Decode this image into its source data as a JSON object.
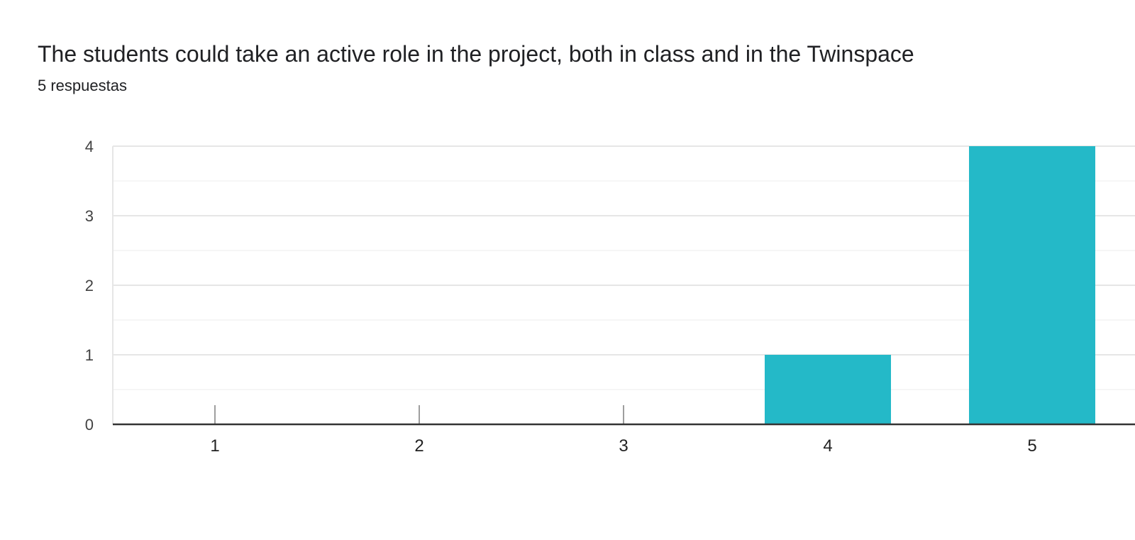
{
  "header": {
    "title": "The students could take an active role in the project, both in class and in the Twinspace",
    "response_count": "5 respuestas"
  },
  "colors": {
    "bar": "#24b9c8",
    "grid_major": "#e6e6e6",
    "grid_minor": "#f3f3f3",
    "axis": "#333333",
    "tick_mark": "#9e9e9e"
  },
  "chart_data": {
    "type": "bar",
    "categories": [
      "1",
      "2",
      "3",
      "4",
      "5"
    ],
    "values": [
      0,
      0,
      0,
      1,
      4
    ],
    "title": "The students could take an active role in the project, both in class and in the Twinspace",
    "xlabel": "",
    "ylabel": "",
    "ylim": [
      0,
      4
    ],
    "yticks": [
      0,
      1,
      2,
      3,
      4
    ],
    "grid": true,
    "legend": "none"
  }
}
